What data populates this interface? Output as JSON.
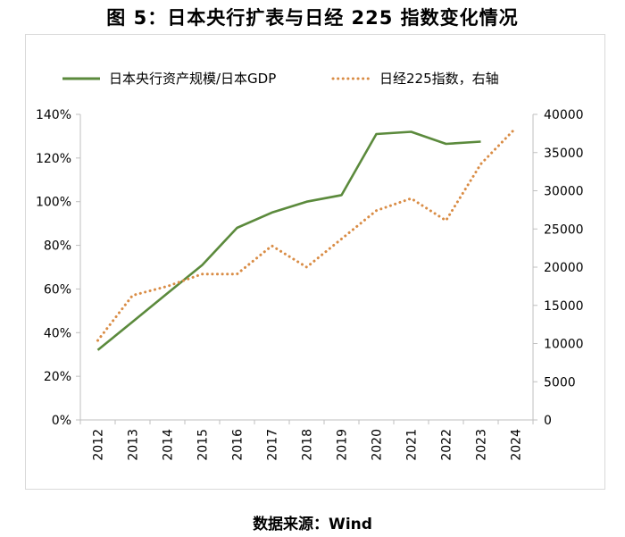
{
  "page": {
    "title": "图 5：日本央行扩表与日经 225 指数变化情况",
    "source": "数据来源：Wind"
  },
  "chart_data": {
    "type": "line",
    "title": "图 5：日本央行扩表与日经 225 指数变化情况",
    "x": [
      "2012",
      "2013",
      "2014",
      "2015",
      "2016",
      "2017",
      "2018",
      "2019",
      "2020",
      "2021",
      "2022",
      "2023",
      "2024"
    ],
    "legend_position": "top",
    "grid": false,
    "series": [
      {
        "name": "日本央行资产规模/日本GDP",
        "axis": "left",
        "style": "solid",
        "color": "#5b8a3c",
        "values": [
          32,
          45,
          58,
          71,
          88,
          95,
          100,
          103,
          131,
          132,
          126.5,
          127.5,
          null
        ]
      },
      {
        "name": "日经225指数，右轴",
        "axis": "right",
        "style": "dotted",
        "color": "#d98c45",
        "values": [
          10400,
          16300,
          17500,
          19100,
          19100,
          22800,
          20000,
          23700,
          27400,
          29000,
          26100,
          33500,
          38200
        ]
      }
    ],
    "y_left": {
      "min": 0,
      "max": 140,
      "ticks": [
        "0%",
        "20%",
        "40%",
        "60%",
        "80%",
        "100%",
        "120%",
        "140%"
      ]
    },
    "y_right": {
      "min": 0,
      "max": 40000,
      "ticks": [
        "0",
        "5000",
        "10000",
        "15000",
        "20000",
        "25000",
        "30000",
        "35000",
        "40000"
      ]
    }
  }
}
